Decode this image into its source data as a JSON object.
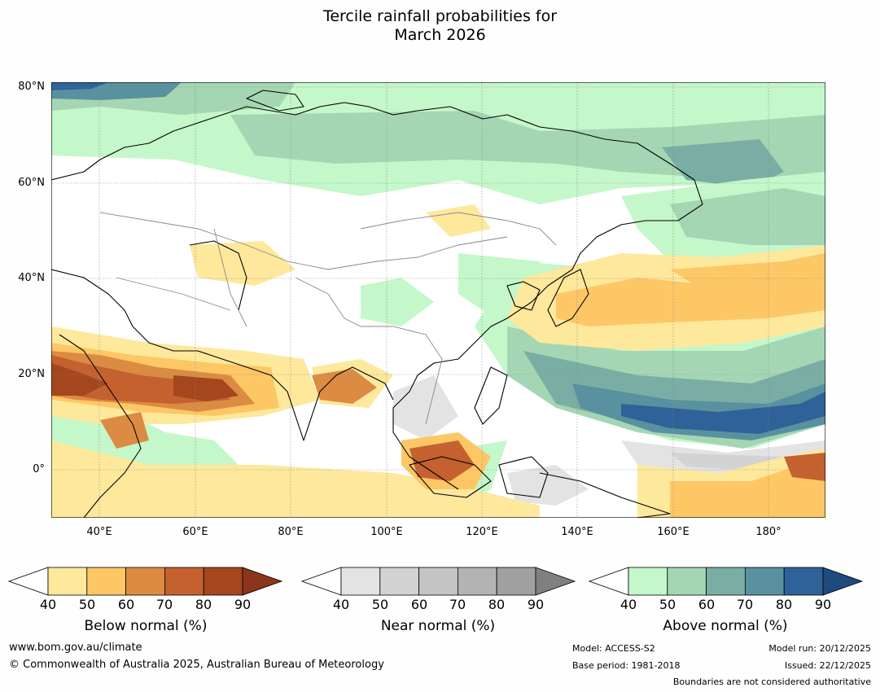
{
  "title_line1": "Tercile rainfall probabilities for",
  "title_line2": "March 2026",
  "map": {
    "lat_labels": [
      "80°N",
      "60°N",
      "40°N",
      "20°N",
      "0°"
    ],
    "lon_labels": [
      "40°E",
      "60°E",
      "80°E",
      "100°E",
      "120°E",
      "140°E",
      "160°E",
      "180°"
    ]
  },
  "legend": {
    "below": {
      "title": "Below normal (%)",
      "ticks": [
        "40",
        "50",
        "60",
        "70",
        "80",
        "90"
      ],
      "colors": [
        "#ffffff",
        "#fee89c",
        "#fdc766",
        "#db8c42",
        "#c4612f",
        "#a4471f",
        "#8b351a"
      ]
    },
    "near": {
      "title": "Near normal (%)",
      "ticks": [
        "40",
        "50",
        "60",
        "70",
        "80",
        "90"
      ],
      "colors": [
        "#ffffff",
        "#e3e3e3",
        "#d3d3d3",
        "#c4c4c4",
        "#b3b3b3",
        "#a0a0a0",
        "#808080"
      ]
    },
    "above": {
      "title": "Above normal (%)",
      "ticks": [
        "40",
        "50",
        "60",
        "70",
        "80",
        "90"
      ],
      "colors": [
        "#ffffff",
        "#c4f7c9",
        "#a4d6b3",
        "#7aaea4",
        "#5a91a0",
        "#2f6298",
        "#1d4b7e"
      ]
    }
  },
  "footer": {
    "website": "www.bom.gov.au/climate",
    "copyright": "© Commonwealth of Australia 2025, Australian Bureau of Meteorology",
    "model": "Model: ACCESS-S2",
    "base_period": "Base period: 1981-2018",
    "model_run": "Model run: 20/12/2025",
    "issued": "Issued: 22/12/2025",
    "boundaries": "Boundaries are not considered authoritative"
  }
}
